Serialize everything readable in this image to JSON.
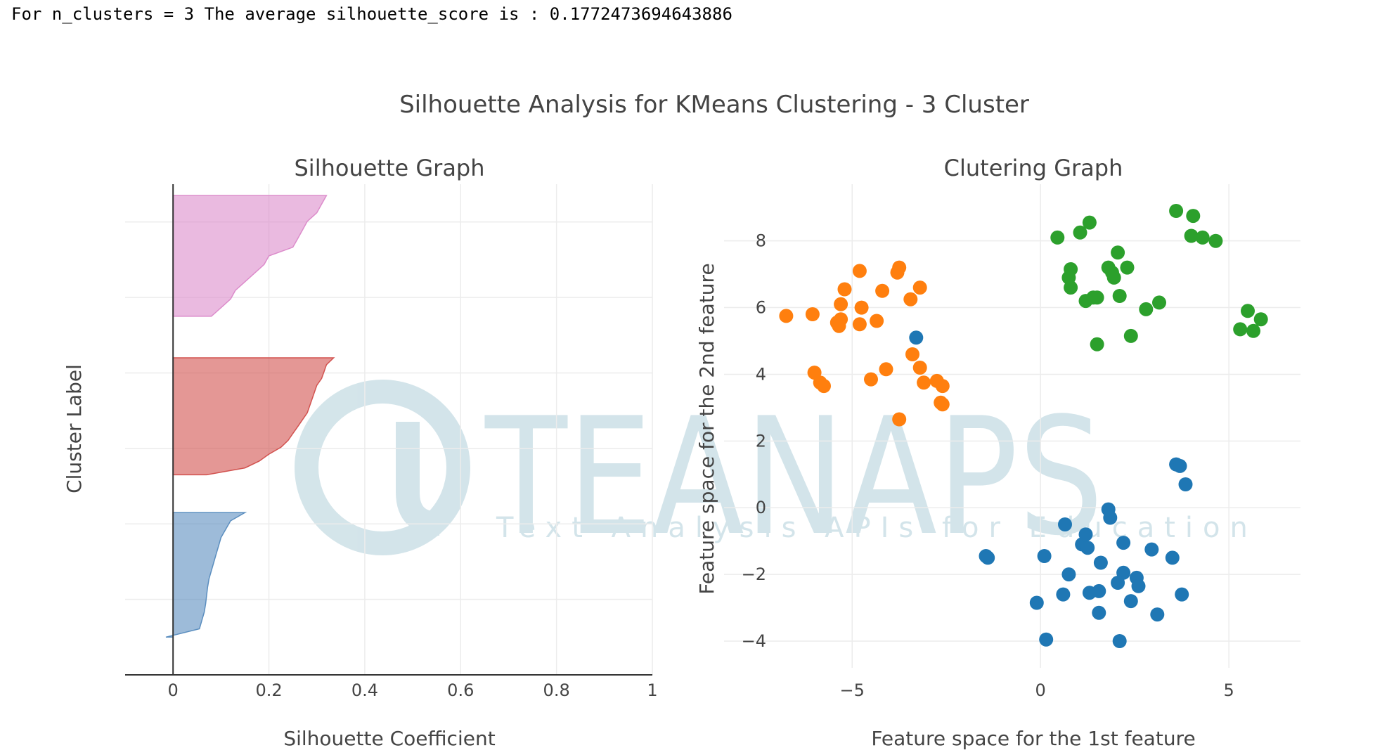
{
  "console": {
    "text": "For n_clusters = 3 The average silhouette_score is : 0.1772473694643886"
  },
  "figure": {
    "title": "Silhouette Analysis for KMeans Clustering - 3 Cluster"
  },
  "watermark": {
    "brand": "TEANAPS",
    "tagline": "Text Analysis APIs for Education",
    "color": "#cfe2e8"
  },
  "colors": {
    "blue": "#1f77b4",
    "orange": "#ff7f0e",
    "green": "#2ca02c",
    "silhouette_blue": "#5b8ebf",
    "silhouette_red": "#d2524f",
    "silhouette_pink": "#dc8ccb"
  },
  "chart_data": [
    {
      "type": "area",
      "title": "Silhouette Graph",
      "xlabel": "Silhouette Coefficient",
      "ylabel": "Cluster Label",
      "xlim": [
        -0.1,
        1.0
      ],
      "ylim": [
        0,
        130
      ],
      "xticks": [
        0,
        0.2,
        0.4,
        0.6,
        0.8,
        1
      ],
      "xtick_labels": [
        "0",
        "0.2",
        "0.4",
        "0.6",
        "0.8",
        "1"
      ],
      "ygrid": [
        20,
        40,
        60,
        80,
        100,
        120
      ],
      "grid": true,
      "series": [
        {
          "color_key": "silhouette_blue",
          "y0": 10,
          "y1": 43,
          "values": [
            -0.015,
            0.055,
            0.06,
            0.065,
            0.068,
            0.07,
            0.072,
            0.075,
            0.08,
            0.085,
            0.09,
            0.095,
            0.1,
            0.11,
            0.12,
            0.15
          ]
        },
        {
          "color_key": "silhouette_red",
          "y0": 53,
          "y1": 84,
          "values": [
            0.07,
            0.15,
            0.18,
            0.2,
            0.225,
            0.24,
            0.25,
            0.26,
            0.27,
            0.28,
            0.285,
            0.29,
            0.295,
            0.3,
            0.31,
            0.315,
            0.32,
            0.335
          ]
        },
        {
          "color_key": "silhouette_pink",
          "y0": 95,
          "y1": 127,
          "values": [
            0.08,
            0.1,
            0.12,
            0.13,
            0.15,
            0.17,
            0.19,
            0.2,
            0.25,
            0.26,
            0.27,
            0.28,
            0.3,
            0.31,
            0.32
          ]
        }
      ]
    },
    {
      "type": "scatter",
      "title": "Clutering Graph",
      "xlabel": "Feature space for the 1st feature",
      "ylabel": "Feature space for the 2nd feature",
      "xlim": [
        -8.4,
        6.9
      ],
      "ylim": [
        -4.8,
        9.7
      ],
      "xticks": [
        -5,
        0,
        5
      ],
      "xtick_labels": [
        "−5",
        "0",
        "5"
      ],
      "yticks": [
        -4,
        -2,
        0,
        2,
        4,
        6,
        8
      ],
      "ytick_labels": [
        "−4",
        "−2",
        "0",
        "2",
        "4",
        "6",
        "8"
      ],
      "grid": true,
      "series": [
        {
          "color_key": "blue",
          "x": [
            -3.3,
            3.6,
            3.7,
            3.85,
            1.8,
            1.85,
            0.65,
            1.1,
            1.25,
            1.2,
            2.2,
            2.95,
            -1.45,
            -1.4,
            0.1,
            3.5,
            1.6,
            0.75,
            2.2,
            2.55,
            2.05,
            2.6,
            3.75,
            1.3,
            1.55,
            0.6,
            -0.1,
            2.4,
            1.55,
            3.1,
            0.15,
            2.1
          ],
          "y": [
            5.1,
            1.3,
            1.25,
            0.7,
            -0.05,
            -0.3,
            -0.5,
            -1.1,
            -1.2,
            -0.8,
            -1.05,
            -1.25,
            -1.45,
            -1.5,
            -1.45,
            -1.5,
            -1.65,
            -2.0,
            -1.95,
            -2.1,
            -2.25,
            -2.35,
            -2.6,
            -2.55,
            -2.5,
            -2.6,
            -2.85,
            -2.8,
            -3.15,
            -3.2,
            -3.95,
            -4.0
          ]
        },
        {
          "color_key": "orange",
          "x": [
            -4.8,
            -3.75,
            -3.8,
            -5.2,
            -4.2,
            -3.2,
            -5.3,
            -4.75,
            -3.45,
            -6.75,
            -6.05,
            -5.3,
            -4.8,
            -5.4,
            -4.35,
            -5.35,
            -3.4,
            -4.1,
            -3.2,
            -6.0,
            -4.5,
            -5.85,
            -5.75,
            -3.1,
            -2.75,
            -2.6,
            -2.65,
            -3.75,
            -2.6
          ],
          "y": [
            7.1,
            7.2,
            7.05,
            6.55,
            6.5,
            6.6,
            6.1,
            6.0,
            6.25,
            5.75,
            5.8,
            5.65,
            5.5,
            5.55,
            5.6,
            5.45,
            4.6,
            4.15,
            4.2,
            4.05,
            3.85,
            3.75,
            3.65,
            3.75,
            3.8,
            3.65,
            3.15,
            2.65,
            3.1
          ]
        },
        {
          "color_key": "green",
          "x": [
            3.6,
            4.05,
            0.45,
            1.05,
            1.3,
            4.0,
            4.3,
            4.65,
            2.05,
            0.8,
            1.8,
            2.3,
            0.75,
            1.9,
            1.95,
            0.8,
            2.1,
            1.4,
            1.2,
            1.5,
            3.15,
            2.8,
            5.5,
            5.85,
            5.3,
            5.65,
            2.4,
            1.5
          ],
          "y": [
            8.9,
            8.75,
            8.1,
            8.25,
            8.55,
            8.15,
            8.1,
            8.0,
            7.65,
            7.15,
            7.2,
            7.2,
            6.9,
            7.05,
            6.9,
            6.6,
            6.35,
            6.3,
            6.2,
            6.3,
            6.15,
            5.95,
            5.9,
            5.65,
            5.35,
            5.3,
            5.15,
            4.9
          ]
        }
      ]
    }
  ]
}
